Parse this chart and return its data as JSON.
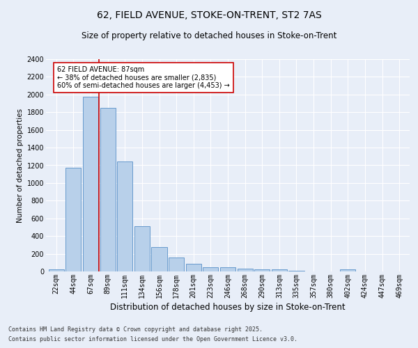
{
  "title1": "62, FIELD AVENUE, STOKE-ON-TRENT, ST2 7AS",
  "title2": "Size of property relative to detached houses in Stoke-on-Trent",
  "xlabel": "Distribution of detached houses by size in Stoke-on-Trent",
  "ylabel": "Number of detached properties",
  "categories": [
    "22sqm",
    "44sqm",
    "67sqm",
    "89sqm",
    "111sqm",
    "134sqm",
    "156sqm",
    "178sqm",
    "201sqm",
    "223sqm",
    "246sqm",
    "268sqm",
    "290sqm",
    "313sqm",
    "335sqm",
    "357sqm",
    "380sqm",
    "402sqm",
    "424sqm",
    "447sqm",
    "469sqm"
  ],
  "values": [
    25,
    1175,
    1975,
    1850,
    1240,
    515,
    275,
    155,
    90,
    50,
    45,
    35,
    25,
    20,
    10,
    0,
    0,
    20,
    0,
    0,
    0
  ],
  "bar_color": "#b8d0ea",
  "bar_edge_color": "#6699cc",
  "red_line_x": 2.5,
  "annotation_text": "62 FIELD AVENUE: 87sqm\n← 38% of detached houses are smaller (2,835)\n60% of semi-detached houses are larger (4,453) →",
  "annotation_box_color": "#ffffff",
  "annotation_box_edge": "#cc0000",
  "red_line_color": "#cc0000",
  "ylim": [
    0,
    2400
  ],
  "yticks": [
    0,
    200,
    400,
    600,
    800,
    1000,
    1200,
    1400,
    1600,
    1800,
    2000,
    2200,
    2400
  ],
  "bg_color": "#e8eef8",
  "grid_color": "#ffffff",
  "footnote1": "Contains HM Land Registry data © Crown copyright and database right 2025.",
  "footnote2": "Contains public sector information licensed under the Open Government Licence v3.0.",
  "title1_fontsize": 10,
  "title2_fontsize": 8.5,
  "xlabel_fontsize": 8.5,
  "ylabel_fontsize": 7.5,
  "tick_fontsize": 7,
  "annotation_fontsize": 7,
  "footnote_fontsize": 6
}
